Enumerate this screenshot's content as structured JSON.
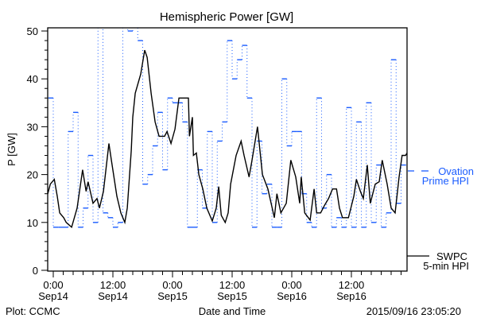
{
  "colors": {
    "ovation": "#1a5cff",
    "swpc": "#000000",
    "axis": "#000000"
  },
  "chart_data": {
    "type": "line",
    "title": "Hemispheric Power [GW]",
    "ylabel": "P [GW]",
    "xlabel": "Date and Time",
    "ylim": [
      0,
      50
    ],
    "xlim_hours_from_2015-09-14T00:00": [
      -1.1,
      71.2
    ],
    "yticks": [
      "0",
      "10",
      "20",
      "30",
      "40",
      "50"
    ],
    "xticks": [
      {
        "hour": 0,
        "time": "0:00",
        "date": "Sep14"
      },
      {
        "hour": 12,
        "time": "12:00",
        "date": "Sep14"
      },
      {
        "hour": 24,
        "time": "0:00",
        "date": "Sep15"
      },
      {
        "hour": 36,
        "time": "12:00",
        "date": "Sep15"
      },
      {
        "hour": 48,
        "time": "0:00",
        "date": "Sep16"
      },
      {
        "hour": 60,
        "time": "12:00",
        "date": "Sep16"
      }
    ],
    "series": [
      {
        "name": "Ovation Prime HPI",
        "legend": [
          "Ovation",
          "Prime HPI"
        ],
        "style": "hourly-step-dotted",
        "start_hour": -1,
        "values": [
          36,
          9,
          9,
          9,
          29,
          33,
          9,
          13,
          24,
          10,
          55,
          12,
          11,
          9,
          10,
          55,
          50,
          52,
          48,
          18,
          20,
          26,
          33,
          21,
          36,
          35,
          35,
          31,
          9,
          9,
          21,
          13,
          29,
          10,
          27,
          31,
          48,
          40,
          44,
          47,
          36,
          9,
          27,
          16,
          18,
          9,
          9,
          40,
          26,
          29,
          29,
          16,
          10,
          9,
          36,
          13,
          20,
          9,
          11,
          9,
          34,
          9,
          31,
          9,
          35,
          10,
          22,
          9,
          12,
          44,
          14,
          22
        ]
      },
      {
        "name": "SWPC 5-min HPI",
        "legend": [
          "SWPC",
          "5-min HPI"
        ],
        "style": "solid",
        "x": [
          -1.1,
          -0.6,
          0.2,
          0.8,
          1.3,
          2.1,
          2.6,
          3.7,
          4.8,
          5.9,
          6.6,
          7,
          8,
          8.8,
          9.3,
          10.1,
          11.2,
          11.7,
          12.8,
          13.6,
          14.4,
          14.9,
          15.7,
          16,
          16.5,
          17.6,
          18.4,
          18.9,
          19.7,
          20.5,
          21.3,
          22.4,
          22.9,
          23.7,
          24.5,
          25.3,
          26.1,
          27.2,
          27.4,
          28,
          28.2,
          28.8,
          29.3,
          30.1,
          30.9,
          32,
          32.8,
          33.3,
          33.8,
          34.6,
          35.2,
          35.7,
          36.8,
          37.8,
          38.4,
          39.4,
          40,
          41.1,
          41.6,
          42.1,
          43.2,
          44.5,
          45,
          45.8,
          46.9,
          47.8,
          48.8,
          49.6,
          49.9,
          50.6,
          51.7,
          52.5,
          53,
          53.8,
          54.6,
          55.4,
          56.2,
          57,
          57.6,
          58.2,
          59.4,
          60.5,
          61,
          61.8,
          62.4,
          63.2,
          63.8,
          64.8,
          65.6,
          66.2,
          67.2,
          68,
          68.8,
          69.6,
          70.2,
          70.9,
          71.2
        ],
        "values": [
          16,
          18,
          19,
          15.5,
          12,
          11,
          10,
          9,
          13,
          21,
          16.5,
          18.5,
          14,
          15,
          13,
          16.5,
          26.5,
          23,
          15.5,
          12,
          10,
          13,
          25,
          32,
          37,
          41,
          46,
          44.5,
          37,
          31,
          28,
          28,
          29,
          26.5,
          29.5,
          36,
          36,
          36,
          28,
          32,
          24,
          24.5,
          20,
          17,
          13,
          10.3,
          13,
          17.5,
          11.5,
          10,
          12,
          18,
          24,
          27,
          24,
          19.5,
          23,
          30,
          25,
          20,
          17,
          11,
          16,
          12,
          14,
          23,
          19.5,
          14,
          19.5,
          12,
          10.5,
          17,
          12,
          12,
          13.6,
          15,
          17,
          17,
          13,
          11,
          11,
          15.5,
          19,
          16.5,
          15,
          22,
          14,
          18,
          18.5,
          23,
          18,
          13,
          12,
          19.5,
          24,
          24,
          24.5
        ]
      }
    ]
  },
  "footer": {
    "left": "Plot: CCMC",
    "center": "Date and Time",
    "right": "2015/09/16 23:05:20"
  }
}
